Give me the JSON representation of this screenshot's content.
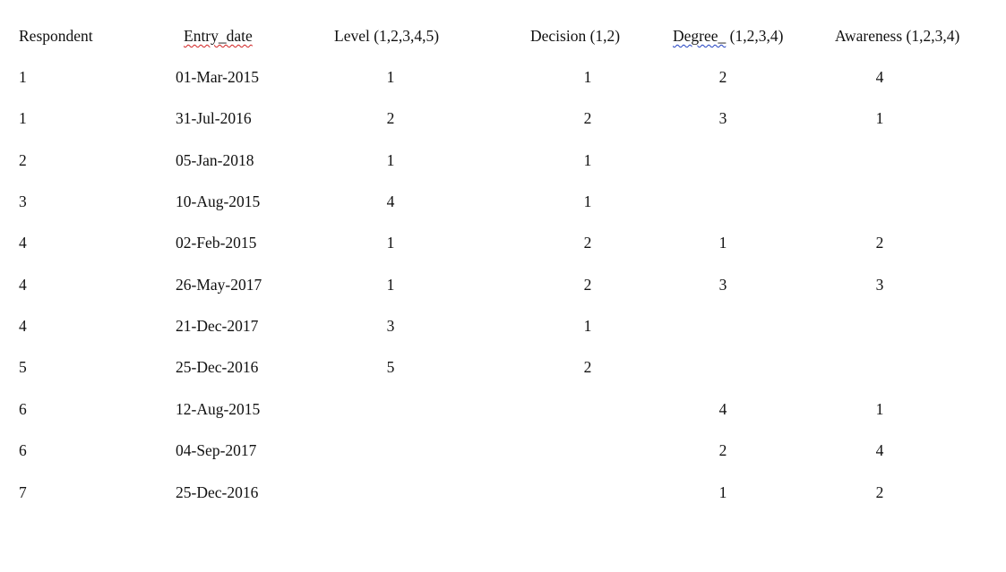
{
  "headers": {
    "respondent": "Respondent",
    "entry_date_word": "Entry_date",
    "level": "Level (1,2,3,4,5)",
    "decision": "Decision (1,2)",
    "degree_word": "Degree_",
    "degree_rest": " (1,2,3,4)",
    "awareness": "Awareness (1,2,3,4)"
  },
  "spellcheck_colors": {
    "spelling": "#d02020",
    "grammar": "#2040c0"
  },
  "rows": [
    [
      "1",
      "01-Mar-2015",
      "1",
      "1",
      "2",
      "4"
    ],
    [
      "1",
      "31-Jul-2016",
      "2",
      "2",
      "3",
      "1"
    ],
    [
      "2",
      "05-Jan-2018",
      "1",
      "1",
      "",
      ""
    ],
    [
      "3",
      "10-Aug-2015",
      "4",
      "1",
      "",
      ""
    ],
    [
      "4",
      "02-Feb-2015",
      "1",
      "2",
      "1",
      "2"
    ],
    [
      "4",
      "26-May-2017",
      "1",
      "2",
      "3",
      "3"
    ],
    [
      "4",
      "21-Dec-2017",
      "3",
      "1",
      "",
      ""
    ],
    [
      "5",
      "25-Dec-2016",
      "5",
      "2",
      "",
      ""
    ],
    [
      "6",
      "12-Aug-2015",
      "",
      "",
      "4",
      "1"
    ],
    [
      "6",
      "04-Sep-2017",
      "",
      "",
      "2",
      "4"
    ],
    [
      "7",
      "25-Dec-2016",
      "",
      "",
      "1",
      "2"
    ]
  ]
}
